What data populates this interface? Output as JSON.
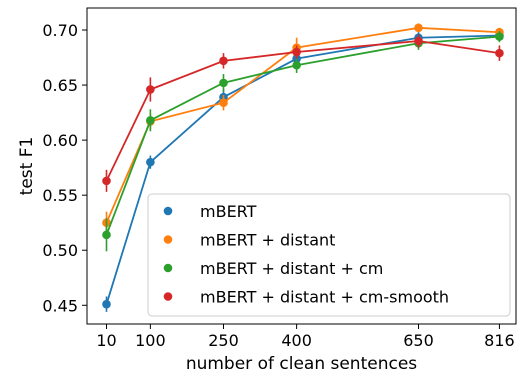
{
  "chart_data": {
    "type": "line",
    "xlabel": "number of clean sentences",
    "ylabel": "test F1",
    "x": [
      10,
      100,
      250,
      400,
      650,
      816
    ],
    "x_tick_labels": [
      "10",
      "100",
      "250",
      "400",
      "650",
      "816"
    ],
    "y_ticks": [
      0.45,
      0.5,
      0.55,
      0.6,
      0.65,
      0.7
    ],
    "y_tick_labels": [
      "0.45",
      "0.50",
      "0.55",
      "0.60",
      "0.65",
      "0.70"
    ],
    "xlim": [
      -30,
      850
    ],
    "ylim": [
      0.433,
      0.72
    ],
    "grid": false,
    "legend_position": "lower right",
    "series": [
      {
        "name": "mBERT",
        "color": "#1f77b4",
        "values": [
          0.451,
          0.58,
          0.639,
          0.674,
          0.693,
          0.695
        ],
        "errors": [
          0.007,
          0.006,
          0.007,
          0.007,
          0.006,
          0.005
        ]
      },
      {
        "name": "mBERT + distant",
        "color": "#ff7f0e",
        "values": [
          0.525,
          0.617,
          0.634,
          0.684,
          0.702,
          0.698
        ],
        "errors": [
          0.01,
          0.007,
          0.007,
          0.009,
          0.004,
          0.004
        ]
      },
      {
        "name": "mBERT + distant + cm",
        "color": "#2ca02c",
        "values": [
          0.514,
          0.618,
          0.652,
          0.668,
          0.688,
          0.694
        ],
        "errors": [
          0.015,
          0.01,
          0.008,
          0.007,
          0.006,
          0.005
        ]
      },
      {
        "name": "mBERT + distant + cm-smooth",
        "color": "#d62728",
        "values": [
          0.563,
          0.646,
          0.672,
          0.68,
          0.69,
          0.679
        ],
        "errors": [
          0.01,
          0.011,
          0.007,
          0.006,
          0.006,
          0.007
        ]
      }
    ]
  }
}
